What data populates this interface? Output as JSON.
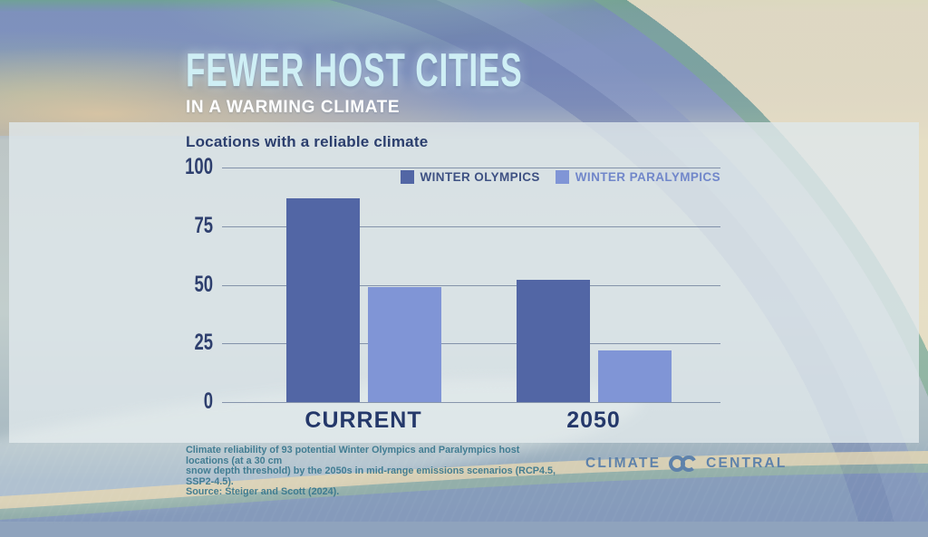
{
  "header": {
    "title": "FEWER HOST CITIES",
    "subtitle": "IN A WARMING CLIMATE"
  },
  "chart_data": {
    "type": "bar",
    "title": "Locations with a reliable climate",
    "categories": [
      "CURRENT",
      "2050"
    ],
    "series": [
      {
        "name": "WINTER OLYMPICS",
        "color": "#5266a5",
        "label_color": "#3e5183",
        "values": [
          87,
          52
        ]
      },
      {
        "name": "WINTER PARALYMPICS",
        "color": "#8095d6",
        "label_color": "#7187ca",
        "values": [
          49,
          22
        ]
      }
    ],
    "ylim": [
      0,
      100
    ],
    "yticks": [
      100,
      75,
      50,
      25,
      0
    ],
    "grid": true,
    "legend_position": "top-right"
  },
  "footer": {
    "source_lines": [
      "Climate reliability of 93 potential Winter Olympics and Paralympics host locations (at a 30 cm",
      "snow depth threshold) by the 2050s in mid-range emissions scenarios (RCP4.5, SSP2-4.5).",
      "Source: Steiger and Scott (2024)."
    ],
    "brand_left": "CLIMATE",
    "brand_right": "CENTRAL",
    "brand_icon": "interlocked-rings-icon"
  },
  "colors": {
    "olympics_bar": "#5266a5",
    "paralympics_bar": "#8095d6",
    "navy_text": "#2b3e6d",
    "title_ice": "#cfeff5",
    "source_teal": "#37768d",
    "brand_blue": "#5e82ab",
    "panel_bg": "rgba(222,231,234,0.82)"
  }
}
